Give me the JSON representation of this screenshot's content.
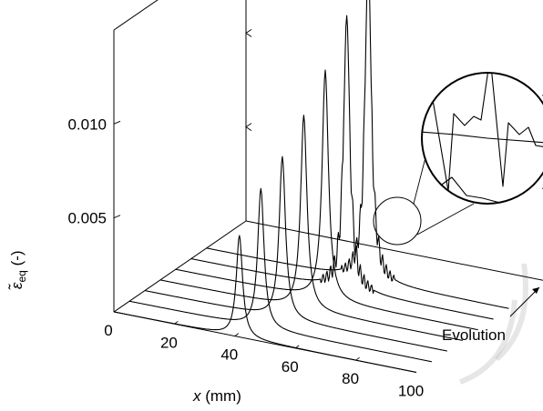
{
  "chart_data": {
    "type": "line",
    "style": "3d-waterfall",
    "xlabel_var": "x",
    "xlabel_unit": " (mm)",
    "ylabel_symbol": "ε̃",
    "ylabel_sub": "eq",
    "ylabel_unit": " (-)",
    "depth_label": "Evolution",
    "x_ticks": [
      "0",
      "20",
      "40",
      "60",
      "80",
      "100"
    ],
    "z_ticks": [
      "0.005",
      "0.010"
    ],
    "xlim": [
      0,
      100
    ],
    "zlim": [
      0,
      0.015
    ],
    "grid": false,
    "legend": "none",
    "inset": "zoom-circle",
    "series": [
      {
        "peak_x": 41.5,
        "peak_height": 0.0054,
        "noisy": false
      },
      {
        "peak_x": 43.5,
        "peak_height": 0.0074,
        "noisy": false
      },
      {
        "peak_x": 45.5,
        "peak_height": 0.0086,
        "noisy": false
      },
      {
        "peak_x": 47.5,
        "peak_height": 0.0103,
        "noisy": false
      },
      {
        "peak_x": 49.5,
        "peak_height": 0.0122,
        "noisy": false
      },
      {
        "peak_x": 51.5,
        "peak_height": 0.0146,
        "noisy": true
      },
      {
        "peak_x": 53.5,
        "peak_height": 0.0172,
        "noisy": true
      }
    ]
  }
}
